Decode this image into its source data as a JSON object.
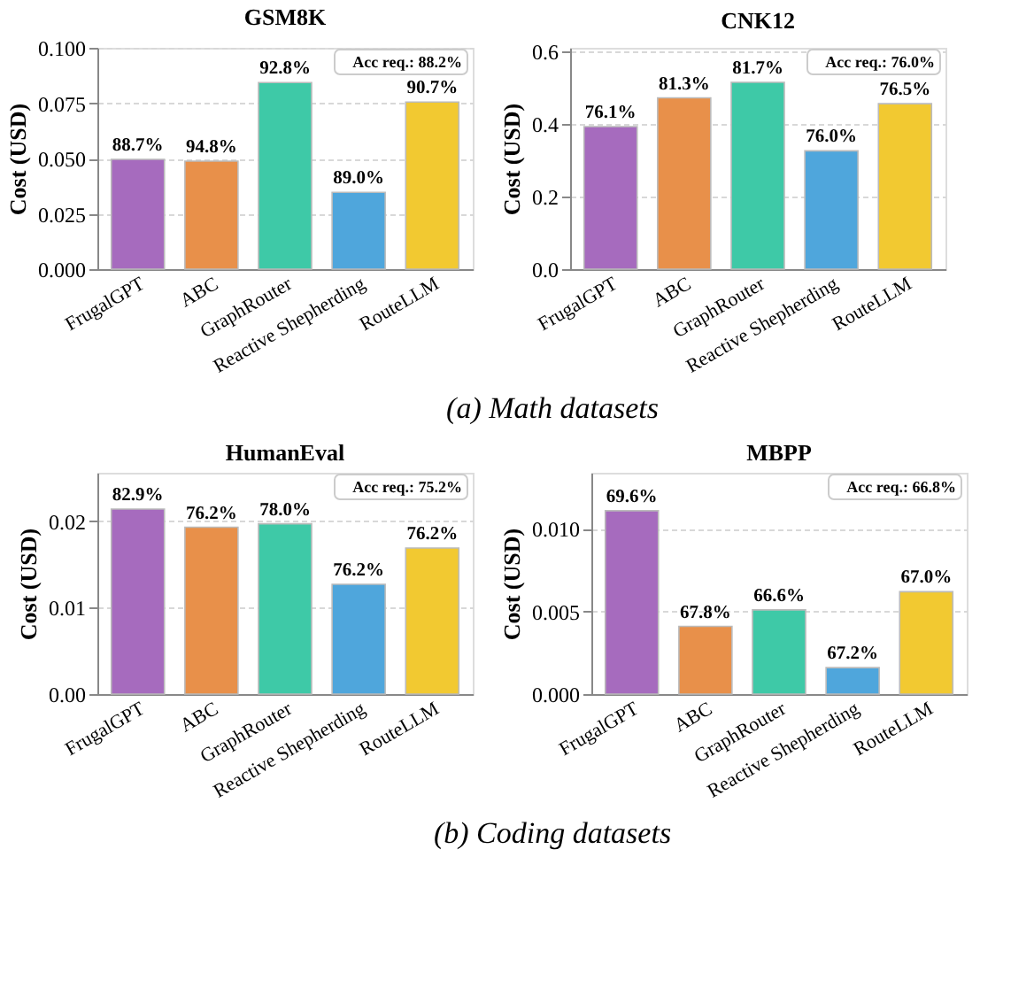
{
  "chart_data": [
    {
      "type": "bar",
      "title": "GSM8K",
      "ylabel": "Cost (USD)",
      "categories": [
        "FrugalGPT",
        "ABC",
        "GraphRouter",
        "Reactive Shepherding",
        "RouteLLM"
      ],
      "values": [
        0.0496,
        0.0488,
        0.0843,
        0.0347,
        0.0755
      ],
      "colors": [
        "#a66bbe",
        "#e8904a",
        "#3ec9a7",
        "#4fa6dc",
        "#f2c931"
      ],
      "ylim": [
        0,
        0.1
      ],
      "yticks": [
        {
          "value": 0,
          "label": "0.000"
        },
        {
          "value": 0.025,
          "label": "0.025"
        },
        {
          "value": 0.05,
          "label": "0.050"
        },
        {
          "value": 0.075,
          "label": "0.075"
        },
        {
          "value": 0.1,
          "label": "0.100"
        }
      ],
      "grid": "y",
      "annotations": [
        "Acc req.: 88.2%",
        "(a) Math datasets",
        {
          "text": "88.7%",
          "x": "FrugalGPT",
          "y": 0.0496
        },
        {
          "text": "94.8%",
          "x": "ABC",
          "y": 0.0488
        },
        {
          "text": "92.8%",
          "x": "GraphRouter",
          "y": 0.0843
        },
        {
          "text": "89.0%",
          "x": "Reactive Shepherding",
          "y": 0.0347
        },
        {
          "text": "90.7%",
          "x": "RouteLLM",
          "y": 0.0755
        }
      ]
    },
    {
      "type": "bar",
      "title": "CNK12",
      "ylabel": "Cost (USD)",
      "categories": [
        "FrugalGPT",
        "ABC",
        "GraphRouter",
        "Reactive Shepherding",
        "RouteLLM"
      ],
      "values": [
        0.393,
        0.472,
        0.515,
        0.326,
        0.456
      ],
      "colors": [
        "#a66bbe",
        "#e8904a",
        "#3ec9a7",
        "#4fa6dc",
        "#f2c931"
      ],
      "ylim": [
        0,
        0.61
      ],
      "yticks": [
        {
          "value": 0,
          "label": "0.0"
        },
        {
          "value": 0.2,
          "label": "0.2"
        },
        {
          "value": 0.4,
          "label": "0.4"
        },
        {
          "value": 0.6,
          "label": "0.6"
        }
      ],
      "grid": "y",
      "annotations": [
        "Acc req.: 76.0%",
        {
          "text": "76.1%",
          "x": "FrugalGPT",
          "y": 0.393
        },
        {
          "text": "81.3%",
          "x": "ABC",
          "y": 0.472
        },
        {
          "text": "81.7%",
          "x": "GraphRouter",
          "y": 0.515
        },
        {
          "text": "76.0%",
          "x": "Reactive Shepherding",
          "y": 0.326
        },
        {
          "text": "76.5%",
          "x": "RouteLLM",
          "y": 0.456
        }
      ]
    },
    {
      "type": "bar",
      "title": "HumanEval",
      "ylabel": "Cost (USD)",
      "categories": [
        "FrugalGPT",
        "ABC",
        "GraphRouter",
        "Reactive Shepherding",
        "RouteLLM"
      ],
      "values": [
        0.0214,
        0.0193,
        0.0197,
        0.0127,
        0.0169
      ],
      "colors": [
        "#a66bbe",
        "#e8904a",
        "#3ec9a7",
        "#4fa6dc",
        "#f2c931"
      ],
      "ylim": [
        0,
        0.0256
      ],
      "yticks": [
        {
          "value": 0,
          "label": "0.00"
        },
        {
          "value": 0.01,
          "label": "0.01"
        },
        {
          "value": 0.02,
          "label": "0.02"
        }
      ],
      "grid": "y",
      "annotations": [
        "Acc req.: 75.2%",
        "(b) Coding datasets",
        {
          "text": "82.9%",
          "x": "FrugalGPT",
          "y": 0.0214
        },
        {
          "text": "76.2%",
          "x": "ABC",
          "y": 0.0193
        },
        {
          "text": "78.0%",
          "x": "GraphRouter",
          "y": 0.0197
        },
        {
          "text": "76.2%",
          "x": "Reactive Shepherding",
          "y": 0.0127
        },
        {
          "text": "76.2%",
          "x": "RouteLLM",
          "y": 0.0169
        }
      ]
    },
    {
      "type": "bar",
      "title": "MBPP",
      "ylabel": "Cost (USD)",
      "categories": [
        "FrugalGPT",
        "ABC",
        "GraphRouter",
        "Reactive Shepherding",
        "RouteLLM"
      ],
      "values": [
        0.0111,
        0.0041,
        0.0051,
        0.0016,
        0.0062
      ],
      "colors": [
        "#a66bbe",
        "#e8904a",
        "#3ec9a7",
        "#4fa6dc",
        "#f2c931"
      ],
      "ylim": [
        0,
        0.0134
      ],
      "yticks": [
        {
          "value": 0,
          "label": "0.000"
        },
        {
          "value": 0.005,
          "label": "0.005"
        },
        {
          "value": 0.01,
          "label": "0.010"
        }
      ],
      "grid": "y",
      "annotations": [
        "Acc req.: 66.8%",
        {
          "text": "69.6%",
          "x": "FrugalGPT",
          "y": 0.0111
        },
        {
          "text": "67.8%",
          "x": "ABC",
          "y": 0.0041
        },
        {
          "text": "66.6%",
          "x": "GraphRouter",
          "y": 0.0051
        },
        {
          "text": "67.2%",
          "x": "Reactive Shepherding",
          "y": 0.0016
        },
        {
          "text": "67.0%",
          "x": "RouteLLM",
          "y": 0.0062
        }
      ]
    }
  ]
}
